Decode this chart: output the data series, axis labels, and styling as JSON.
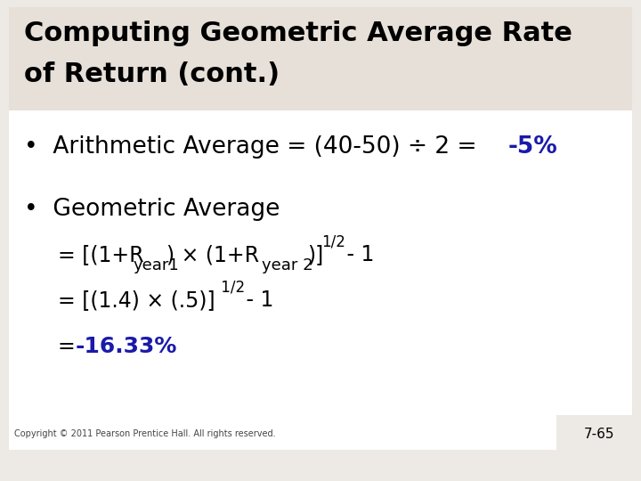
{
  "background_color": "#ede9e4",
  "slide_bg": "#ffffff",
  "title_text_line1": "Computing Geometric Average Rate",
  "title_text_line2": "of Return (cont.)",
  "title_color": "#000000",
  "title_fontsize": 22,
  "title_bold": true,
  "bullet1_prefix": "•  Arithmetic Average = (40-50) ÷ 2 =  ",
  "bullet1_highlight": "-5%",
  "bullet1_fontsize": 19,
  "bullet1_color": "#000000",
  "bullet1_highlight_color": "#1a1aaa",
  "bullet2_header": "•  Geometric Average",
  "bullet2_fontsize": 19,
  "bullet2_color": "#000000",
  "line3_highlight": "-16.33%",
  "line3_color": "#1a1aaa",
  "eq_fontsize": 17,
  "copyright_text": "Copyright © 2011 Pearson Prentice Hall. All rights reserved.",
  "copyright_fontsize": 7,
  "page_num": "7-65",
  "page_num_fontsize": 11,
  "title_bar_color": "#e6e0d8"
}
